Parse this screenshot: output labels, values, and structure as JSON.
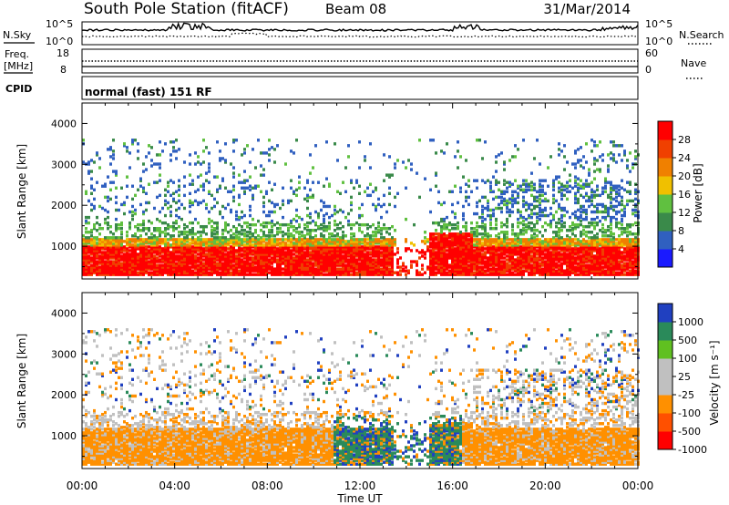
{
  "header": {
    "station": "South Pole Station (fitACF)",
    "beam": "Beam 08",
    "date": "31/Mar/2014"
  },
  "nsky_panel": {
    "left_label": "N.Sky",
    "right_label": "N.Search",
    "left_ticks": [
      "10^5",
      "10^0"
    ],
    "right_ticks": [
      "10^5",
      "10^0"
    ]
  },
  "freq_panel": {
    "label_line1": "Freq.",
    "label_line2": "[MHz]",
    "left_ticks": [
      "18",
      "8"
    ],
    "right_ticks": [
      "60",
      "0"
    ],
    "right_label": "Nave"
  },
  "cpid_panel": {
    "label": "CPID",
    "value": "normal (fast) 151 RF"
  },
  "colors": {
    "power": [
      "#1a1aff",
      "#3060c0",
      "#3a8a4a",
      "#60c040",
      "#f0c000",
      "#f08000",
      "#f04000",
      "#ff0000"
    ],
    "velocity": [
      "#ff0000",
      "#ff5000",
      "#ff9000",
      "#c0c0c0",
      "#c0c0c0",
      "#60c020",
      "#2a8a5a",
      "#2040c0"
    ]
  },
  "chart_data": [
    {
      "type": "heatmap",
      "ylabel": "Slant Range [km]",
      "xlabel": "",
      "ylim": [
        200,
        4500
      ],
      "yticks": [
        "1000",
        "2000",
        "3000",
        "4000"
      ],
      "colorbar_label": "Power [dB]",
      "colorbar_ticks": [
        "4",
        "8",
        "12",
        "16",
        "20",
        "24",
        "28"
      ]
    },
    {
      "type": "heatmap",
      "ylabel": "Slant Range [km]",
      "xlabel": "Time UT",
      "ylim": [
        200,
        4500
      ],
      "yticks": [
        "1000",
        "2000",
        "3000",
        "4000"
      ],
      "xticks": [
        "00:00",
        "04:00",
        "08:00",
        "12:00",
        "16:00",
        "20:00",
        "00:00"
      ],
      "colorbar_label": "Velocity [m s⁻¹]",
      "colorbar_ticks": [
        "1000",
        "500",
        "100",
        "25",
        "-25",
        "-100",
        "-500",
        "-1000"
      ]
    }
  ]
}
